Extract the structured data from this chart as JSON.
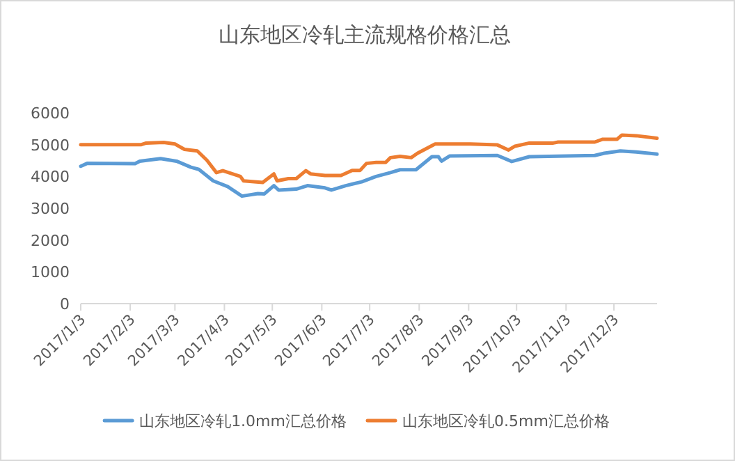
{
  "chart_data": {
    "type": "line",
    "title": "山东地区冷轧主流规格价格汇总",
    "xlim": [
      "2017-01-03",
      "2017-12-30"
    ],
    "xticks": [
      {
        "value": "2017-01-03",
        "label": "2017/1/3"
      },
      {
        "value": "2017-02-03",
        "label": "2017/2/3"
      },
      {
        "value": "2017-03-03",
        "label": "2017/3/3"
      },
      {
        "value": "2017-04-03",
        "label": "2017/4/3"
      },
      {
        "value": "2017-05-03",
        "label": "2017/5/3"
      },
      {
        "value": "2017-06-03",
        "label": "2017/6/3"
      },
      {
        "value": "2017-07-03",
        "label": "2017/7/3"
      },
      {
        "value": "2017-08-03",
        "label": "2017/8/3"
      },
      {
        "value": "2017-09-03",
        "label": "2017/9/3"
      },
      {
        "value": "2017-10-03",
        "label": "2017/10/3"
      },
      {
        "value": "2017-11-03",
        "label": "2017/11/3"
      },
      {
        "value": "2017-12-03",
        "label": "2017/12/3"
      }
    ],
    "ylim": [
      0,
      6000
    ],
    "yticks": [
      0,
      1000,
      2000,
      3000,
      4000,
      5000,
      6000
    ],
    "legend": "bottom",
    "series": [
      {
        "name": "山东地区冷轧1.0mm汇总价格",
        "color": "#5b9bd5",
        "x": [
          "2017-01-03",
          "2017-01-07",
          "2017-02-06",
          "2017-02-09",
          "2017-02-22",
          "2017-03-04",
          "2017-03-13",
          "2017-03-18",
          "2017-03-27",
          "2017-04-05",
          "2017-04-14",
          "2017-04-24",
          "2017-04-28",
          "2017-05-04",
          "2017-05-07",
          "2017-05-18",
          "2017-05-25",
          "2017-06-05",
          "2017-06-09",
          "2017-06-18",
          "2017-06-28",
          "2017-07-07",
          "2017-07-16",
          "2017-07-22",
          "2017-08-01",
          "2017-08-11",
          "2017-08-15",
          "2017-08-17",
          "2017-08-22",
          "2017-09-21",
          "2017-09-30",
          "2017-10-11",
          "2017-11-21",
          "2017-11-27",
          "2017-12-07",
          "2017-12-17",
          "2017-12-30"
        ],
        "values": [
          4320,
          4410,
          4400,
          4480,
          4560,
          4480,
          4290,
          4220,
          3860,
          3680,
          3380,
          3460,
          3450,
          3710,
          3570,
          3600,
          3710,
          3640,
          3570,
          3710,
          3830,
          4000,
          4120,
          4210,
          4210,
          4620,
          4620,
          4480,
          4640,
          4660,
          4470,
          4620,
          4660,
          4730,
          4800,
          4770,
          4700
        ]
      },
      {
        "name": "山东地区冷轧0.5mm汇总价格",
        "color": "#ed7d31",
        "x": [
          "2017-01-03",
          "2017-02-10",
          "2017-02-13",
          "2017-02-24",
          "2017-03-03",
          "2017-03-09",
          "2017-03-17",
          "2017-03-23",
          "2017-03-29",
          "2017-04-02",
          "2017-04-08",
          "2017-04-13",
          "2017-04-15",
          "2017-04-27",
          "2017-05-04",
          "2017-05-06",
          "2017-05-13",
          "2017-05-18",
          "2017-05-24",
          "2017-05-27",
          "2017-06-05",
          "2017-06-15",
          "2017-06-22",
          "2017-06-27",
          "2017-07-01",
          "2017-07-07",
          "2017-07-13",
          "2017-07-16",
          "2017-07-22",
          "2017-07-29",
          "2017-08-02",
          "2017-08-13",
          "2017-09-04",
          "2017-09-21",
          "2017-09-28",
          "2017-10-02",
          "2017-10-11",
          "2017-10-26",
          "2017-10-29",
          "2017-11-21",
          "2017-11-26",
          "2017-12-05",
          "2017-12-08",
          "2017-12-17",
          "2017-12-30"
        ],
        "values": [
          5000,
          5000,
          5050,
          5070,
          5020,
          4850,
          4800,
          4510,
          4120,
          4180,
          4080,
          4000,
          3860,
          3810,
          4080,
          3860,
          3930,
          3930,
          4180,
          4080,
          4030,
          4030,
          4190,
          4190,
          4410,
          4440,
          4440,
          4590,
          4630,
          4590,
          4730,
          5020,
          5020,
          4990,
          4830,
          4950,
          5050,
          5050,
          5080,
          5080,
          5170,
          5170,
          5300,
          5280,
          5200
        ]
      }
    ]
  }
}
